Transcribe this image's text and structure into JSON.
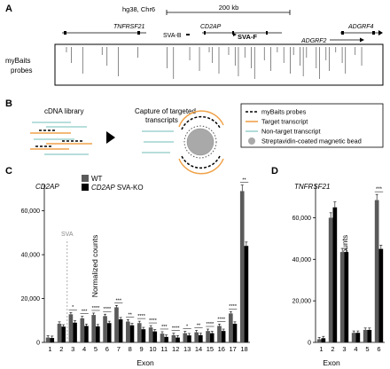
{
  "panelA": {
    "label": "A",
    "assembly": "hg38, Chr6",
    "scale": "200 kb",
    "genes": [
      "TNFRSF21",
      "CD2AP",
      "ADGRF4",
      "ADGRF2"
    ],
    "sva_b": "SVA-B",
    "sva_f": "SVA-F",
    "track_label_1": "myBaits",
    "track_label_2": "probes",
    "probe_positions": [
      0.03,
      0.045,
      0.08,
      0.14,
      0.155,
      0.19,
      0.25,
      0.34,
      0.36,
      0.41,
      0.44,
      0.47,
      0.48,
      0.5,
      0.53,
      0.55,
      0.56,
      0.58,
      0.6,
      0.61,
      0.64,
      0.66,
      0.68,
      0.7,
      0.72,
      0.73,
      0.75,
      0.76,
      0.77,
      0.8,
      0.81,
      0.83,
      0.84,
      0.86,
      0.88,
      0.89,
      0.92,
      0.94
    ]
  },
  "panelB": {
    "label": "B",
    "step1": "cDNA library",
    "step2_line1": "Capture of targeted",
    "step2_line2": "transcripts",
    "legend": [
      {
        "label": "myBaits probes",
        "kind": "dash",
        "color": "#000000"
      },
      {
        "label": "Target transcript",
        "kind": "line",
        "color": "#f0a24a"
      },
      {
        "label": "Non-target transcript",
        "kind": "line",
        "color": "#9fd4cf"
      },
      {
        "label": "Streptavidin-coated magnetic bead",
        "kind": "dot",
        "color": "#a9a9a9"
      }
    ]
  },
  "panelC": {
    "label": "C",
    "gene": "CD2AP",
    "legend_wt": "WT",
    "legend_ko_gene": "CD2AP",
    "legend_ko_suffix": " SVA-KO",
    "sva_label": "SVA",
    "xlabel": "Exon",
    "ylabel": "Normalized counts",
    "colors": {
      "wt": "#5a5a5a",
      "ko": "#000000"
    }
  },
  "panelD": {
    "label": "D",
    "gene": "TNFRSF21",
    "xlabel": "Exon",
    "ylabel": "Normalized counts"
  },
  "chart_data": [
    {
      "type": "bar",
      "title": "CD2AP",
      "xlabel": "Exon",
      "ylabel": "Normalized counts",
      "categories": [
        "1",
        "2",
        "3",
        "4",
        "5",
        "6",
        "7",
        "8",
        "9",
        "10",
        "11",
        "12",
        "13",
        "14",
        "15",
        "16",
        "17",
        "18"
      ],
      "series": [
        {
          "name": "WT",
          "values": [
            2200,
            8500,
            12800,
            11000,
            12500,
            12000,
            16000,
            9500,
            8800,
            6800,
            4000,
            3300,
            4200,
            4600,
            5200,
            7500,
            13200,
            69000
          ]
        },
        {
          "name": "CD2AP SVA-KO",
          "values": [
            2000,
            7200,
            9000,
            7500,
            7300,
            8800,
            10500,
            7800,
            6000,
            5000,
            2500,
            2200,
            3200,
            3300,
            4200,
            5200,
            8500,
            44000
          ]
        }
      ],
      "significance": [
        "",
        "",
        "*",
        "***",
        "****",
        "****",
        "***",
        "**",
        "****",
        "****",
        "***",
        "****",
        "*",
        "**",
        "****",
        "****",
        "****",
        "**"
      ],
      "sva_annotation": "SVA",
      "ylim": [
        0,
        72000
      ],
      "yticks": [
        0,
        20000,
        40000,
        60000
      ],
      "ytick_labels": [
        "0",
        "20,000",
        "40,000",
        "60,000"
      ]
    },
    {
      "type": "bar",
      "title": "TNFRSF21",
      "xlabel": "Exon",
      "ylabel": "Normalized counts",
      "categories": [
        "1",
        "2",
        "3",
        "4",
        "5",
        "6"
      ],
      "series": [
        {
          "name": "WT",
          "values": [
            1500,
            60000,
            43500,
            4600,
            6000,
            68500
          ]
        },
        {
          "name": "CD2AP SVA-KO",
          "values": [
            2000,
            65000,
            43500,
            4600,
            6000,
            45000
          ]
        }
      ],
      "significance": [
        "",
        "",
        "",
        "",
        "",
        "***"
      ],
      "ylim": [
        0,
        76000
      ],
      "yticks": [
        0,
        20000,
        40000,
        60000
      ],
      "ytick_labels": [
        "0",
        "20,000",
        "40,000",
        "60,000"
      ]
    }
  ]
}
